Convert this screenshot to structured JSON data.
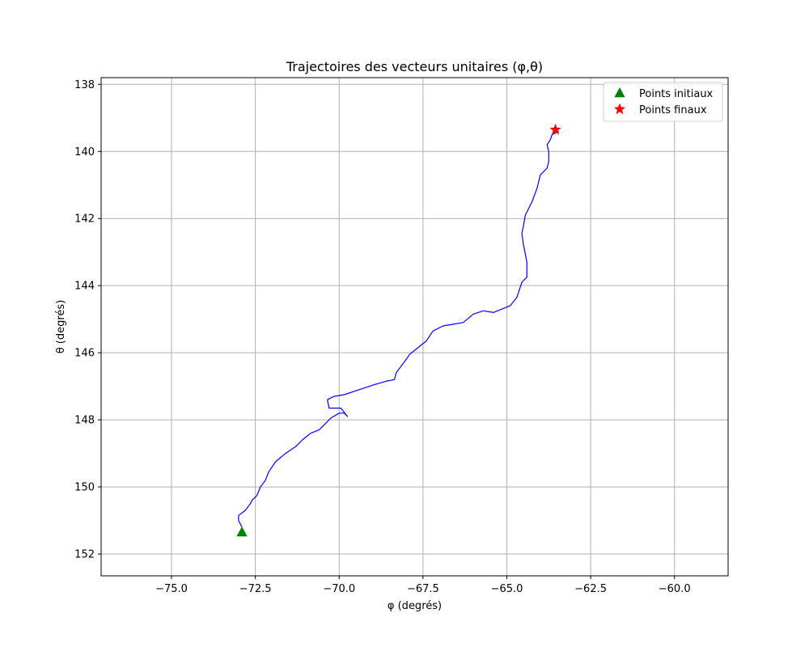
{
  "chart_data": {
    "type": "line",
    "title": "Trajectoires des vecteurs unitaires (φ,θ)",
    "xlabel": "φ (degrés)",
    "ylabel": "θ (degrés)",
    "xlim": [
      -77.1,
      -58.4
    ],
    "ylim": [
      152.65,
      137.8
    ],
    "y_inverted": true,
    "xticks": [
      -75.0,
      -72.5,
      -70.0,
      -67.5,
      -65.0,
      -62.5,
      -60.0
    ],
    "xtick_labels": [
      "−75.0",
      "−72.5",
      "−70.0",
      "−67.5",
      "−65.0",
      "−62.5",
      "−60.0"
    ],
    "yticks": [
      138,
      140,
      142,
      144,
      146,
      148,
      150,
      152
    ],
    "ytick_labels": [
      "138",
      "140",
      "142",
      "144",
      "146",
      "148",
      "150",
      "152"
    ],
    "grid": true,
    "legend_position": "upper-right",
    "series": [
      {
        "name": "trajectory",
        "color": "#0000ff",
        "x": [
          -72.9,
          -73.0,
          -73.0,
          -72.8,
          -72.65,
          -72.6,
          -72.45,
          -72.35,
          -72.2,
          -72.1,
          -71.9,
          -71.6,
          -71.3,
          -71.1,
          -70.85,
          -70.6,
          -70.4,
          -70.25,
          -70.0,
          -69.85,
          -69.75,
          -69.95,
          -70.3,
          -70.35,
          -70.15,
          -69.85,
          -69.4,
          -68.95,
          -68.6,
          -68.35,
          -68.3,
          -68.15,
          -68.0,
          -67.9,
          -67.65,
          -67.4,
          -67.2,
          -66.9,
          -66.6,
          -66.3,
          -66.0,
          -65.7,
          -65.4,
          -65.15,
          -64.9,
          -64.7,
          -64.55,
          -64.4,
          -64.4,
          -64.5,
          -64.55,
          -64.5,
          -64.45,
          -64.25,
          -64.1,
          -64.0,
          -63.8,
          -63.75,
          -63.75,
          -63.8,
          -63.7,
          -63.65,
          -63.45
        ],
        "y": [
          151.2,
          151.0,
          150.85,
          150.7,
          150.5,
          150.4,
          150.25,
          150.0,
          149.8,
          149.55,
          149.25,
          149.0,
          148.8,
          148.6,
          148.4,
          148.3,
          148.1,
          147.95,
          147.8,
          147.8,
          147.9,
          147.65,
          147.65,
          147.4,
          147.3,
          147.25,
          147.1,
          146.95,
          146.85,
          146.8,
          146.6,
          146.4,
          146.2,
          146.05,
          145.85,
          145.65,
          145.35,
          145.2,
          145.15,
          145.1,
          144.85,
          144.75,
          144.8,
          144.7,
          144.6,
          144.35,
          143.9,
          143.75,
          143.3,
          142.8,
          142.45,
          142.2,
          141.9,
          141.5,
          141.1,
          140.7,
          140.5,
          140.3,
          140.0,
          139.8,
          139.65,
          139.5,
          139.4
        ]
      }
    ],
    "markers": [
      {
        "name": "Points initiaux",
        "x": -72.9,
        "y": 151.35,
        "shape": "triangle",
        "color": "#008000"
      },
      {
        "name": "Points finaux",
        "x": -63.55,
        "y": 139.35,
        "shape": "star",
        "color": "#ff0000"
      }
    ]
  }
}
